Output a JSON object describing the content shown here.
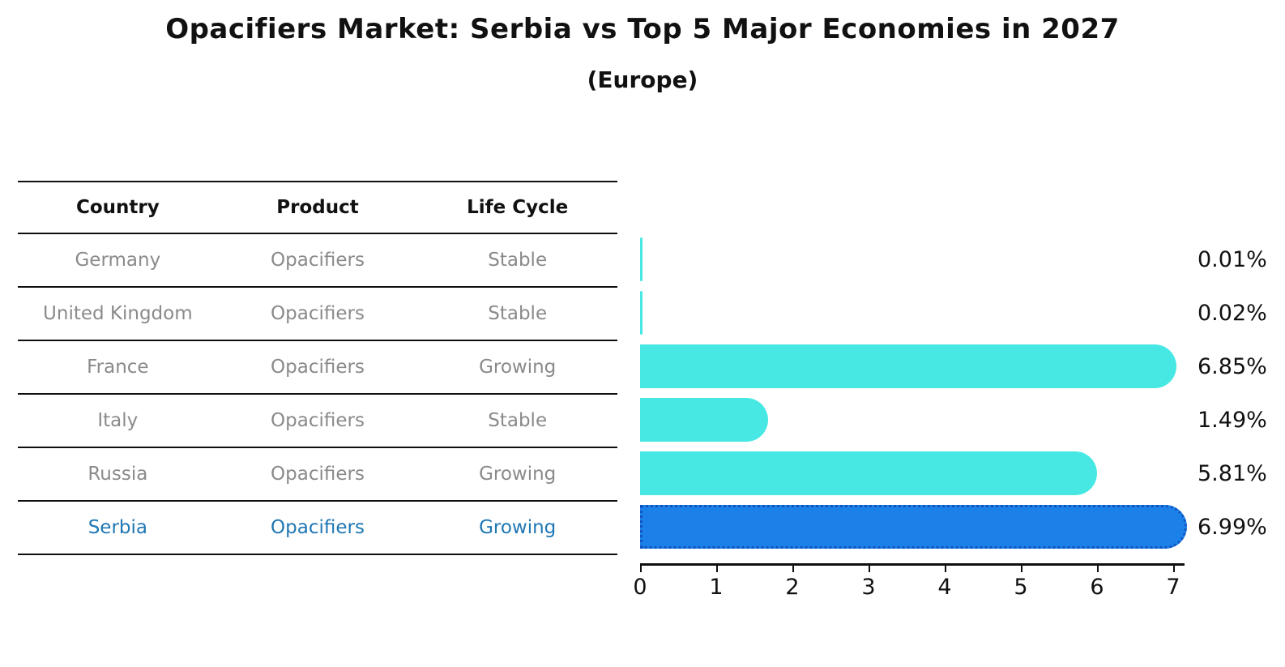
{
  "title": "Opacifiers Market: Serbia vs Top 5 Major Economies in 2027",
  "subtitle": "(Europe)",
  "table": {
    "headers": [
      "Country",
      "Product",
      "Life Cycle"
    ],
    "rows": [
      {
        "country": "Germany",
        "product": "Opacifiers",
        "life_cycle": "Stable",
        "highlight": false
      },
      {
        "country": "United Kingdom",
        "product": "Opacifiers",
        "life_cycle": "Stable",
        "highlight": false
      },
      {
        "country": "France",
        "product": "Opacifiers",
        "life_cycle": "Growing",
        "highlight": false
      },
      {
        "country": "Italy",
        "product": "Opacifiers",
        "life_cycle": "Stable",
        "highlight": false
      },
      {
        "country": "Russia",
        "product": "Opacifiers",
        "life_cycle": "Growing",
        "highlight": false
      },
      {
        "country": "Serbia",
        "product": "Opacifiers",
        "life_cycle": "Growing",
        "highlight": true
      }
    ]
  },
  "chart_data": {
    "type": "bar",
    "orientation": "horizontal",
    "categories": [
      "Germany",
      "United Kingdom",
      "France",
      "Italy",
      "Russia",
      "Serbia"
    ],
    "values": [
      0.01,
      0.02,
      6.85,
      1.49,
      5.81,
      6.99
    ],
    "value_labels": [
      "0.01%",
      "0.02%",
      "6.85%",
      "1.49%",
      "5.81%",
      "6.99%"
    ],
    "highlight_index": 5,
    "xlim": [
      0,
      7.15
    ],
    "x_ticks": [
      0,
      1,
      2,
      3,
      4,
      5,
      6,
      7
    ],
    "grid": false,
    "legend": false,
    "bar_color": "#47e8e3",
    "highlight_bar_color": "#1b81e9",
    "highlight_border_color": "#1254c0",
    "highlight_text_color": "#1f77b4",
    "table_text_color": "#8a8a8a"
  }
}
